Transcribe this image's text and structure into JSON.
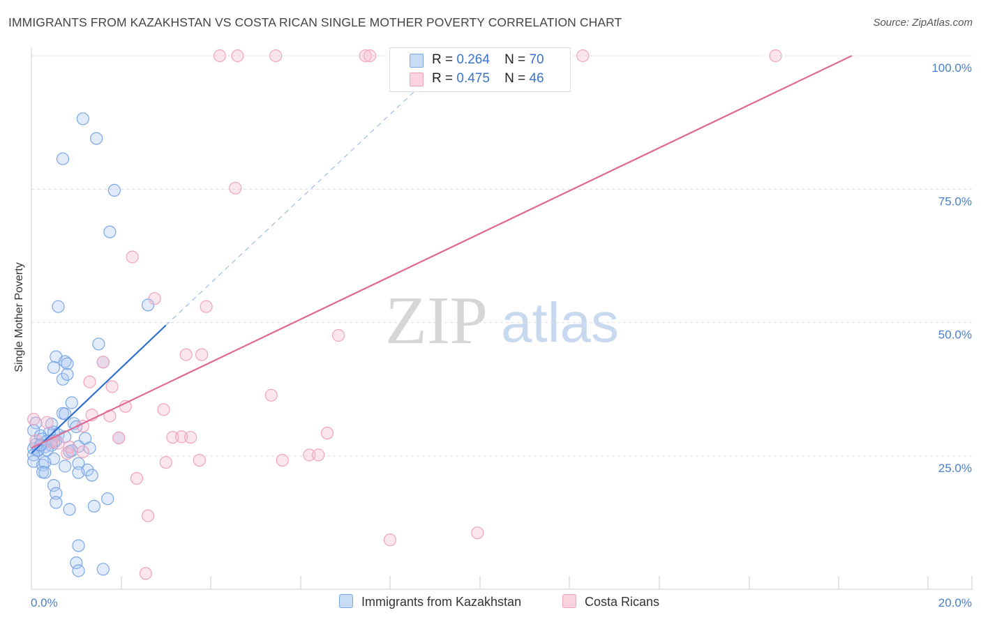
{
  "header": {
    "title": "IMMIGRANTS FROM KAZAKHSTAN VS COSTA RICAN SINGLE MOTHER POVERTY CORRELATION CHART",
    "source": "Source: ZipAtlas.com"
  },
  "watermark": {
    "part1": "ZIP",
    "part2": "atlas"
  },
  "legend": {
    "rows": [
      {
        "r_label": "R =",
        "r_value": "0.264",
        "n_label": "N =",
        "n_value": "70",
        "color": "#a9c7f0"
      },
      {
        "r_label": "R =",
        "r_value": "0.475",
        "n_label": "N =",
        "n_value": "46",
        "color": "#f6b8cc"
      }
    ]
  },
  "bottom_legend": {
    "items": [
      {
        "label": "Immigrants from Kazakhstan",
        "color": "#a9c7f0"
      },
      {
        "label": "Costa Ricans",
        "color": "#f6b8cc"
      }
    ]
  },
  "chart_data": {
    "type": "scatter",
    "title": "IMMIGRANTS FROM KAZAKHSTAN VS COSTA RICAN SINGLE MOTHER POVERTY CORRELATION CHART",
    "xlabel": "",
    "ylabel": "Single Mother Poverty",
    "xlim": [
      0,
      20
    ],
    "ylim": [
      0,
      100
    ],
    "x_tick_labels": [
      "0.0%",
      "20.0%"
    ],
    "y_ticks": [
      25,
      50,
      75,
      100
    ],
    "y_tick_labels": [
      "25.0%",
      "50.0%",
      "75.0%",
      "100.0%"
    ],
    "grid": "horizontal dashed",
    "series": [
      {
        "name": "Immigrants from Kazakhstan",
        "color": "#7aa7e6",
        "line_color": "#2f6fd0",
        "trend": {
          "x0": 0.0,
          "y0": 25.5,
          "x1": 3.0,
          "y1": 49.5,
          "dash_to_x": 9.2,
          "dash_to_y": 98.5
        },
        "points": [
          [
            1.15,
            88.2
          ],
          [
            1.45,
            84.5
          ],
          [
            0.7,
            80.7
          ],
          [
            1.85,
            74.8
          ],
          [
            1.75,
            67.0
          ],
          [
            0.6,
            53.0
          ],
          [
            2.6,
            53.3
          ],
          [
            1.5,
            46.0
          ],
          [
            0.55,
            43.6
          ],
          [
            0.5,
            41.6
          ],
          [
            0.75,
            42.7
          ],
          [
            0.8,
            42.3
          ],
          [
            0.7,
            39.4
          ],
          [
            0.8,
            40.3
          ],
          [
            1.6,
            42.6
          ],
          [
            0.9,
            35.0
          ],
          [
            0.7,
            33.0
          ],
          [
            0.75,
            32.9
          ],
          [
            0.1,
            31.2
          ],
          [
            0.45,
            31.0
          ],
          [
            0.95,
            31.1
          ],
          [
            1.0,
            30.5
          ],
          [
            0.4,
            29.3
          ],
          [
            0.5,
            29.5
          ],
          [
            0.6,
            29.0
          ],
          [
            0.05,
            29.8
          ],
          [
            0.2,
            28.8
          ],
          [
            0.25,
            28.2
          ],
          [
            0.35,
            27.8
          ],
          [
            0.45,
            27.7
          ],
          [
            0.5,
            27.5
          ],
          [
            0.55,
            27.9
          ],
          [
            0.1,
            27.2
          ],
          [
            0.2,
            26.9
          ],
          [
            0.3,
            26.7
          ],
          [
            0.45,
            27.0
          ],
          [
            0.15,
            26.2
          ],
          [
            0.05,
            26.4
          ],
          [
            0.15,
            26.0
          ],
          [
            0.35,
            26.1
          ],
          [
            0.75,
            28.6
          ],
          [
            0.85,
            25.8
          ],
          [
            1.05,
            26.8
          ],
          [
            1.2,
            28.3
          ],
          [
            1.3,
            26.5
          ],
          [
            1.95,
            28.4
          ],
          [
            0.9,
            26.0
          ],
          [
            0.05,
            25.2
          ],
          [
            0.05,
            24.0
          ],
          [
            0.25,
            23.3
          ],
          [
            0.5,
            24.5
          ],
          [
            0.3,
            23.8
          ],
          [
            0.75,
            23.1
          ],
          [
            1.05,
            23.6
          ],
          [
            1.25,
            22.4
          ],
          [
            0.25,
            22.0
          ],
          [
            0.3,
            21.9
          ],
          [
            1.05,
            21.9
          ],
          [
            1.35,
            21.4
          ],
          [
            0.5,
            19.5
          ],
          [
            0.55,
            18.0
          ],
          [
            0.55,
            16.3
          ],
          [
            1.7,
            17.0
          ],
          [
            1.4,
            15.6
          ],
          [
            0.85,
            15.0
          ],
          [
            1.05,
            8.2
          ],
          [
            1.0,
            5.0
          ],
          [
            1.05,
            3.5
          ],
          [
            1.6,
            3.8
          ],
          [
            0.2,
            27.1
          ]
        ]
      },
      {
        "name": "Costa Ricans",
        "color": "#f0a3bd",
        "line_color": "#e06892",
        "trend": {
          "x0": 0.0,
          "y0": 26.5,
          "x1": 18.3,
          "y1": 100.0
        },
        "points": [
          [
            4.2,
            100.0
          ],
          [
            4.6,
            100.0
          ],
          [
            5.45,
            100.0
          ],
          [
            7.45,
            100.0
          ],
          [
            7.55,
            100.0
          ],
          [
            12.3,
            100.0
          ],
          [
            16.6,
            100.0
          ],
          [
            4.55,
            75.2
          ],
          [
            2.25,
            62.3
          ],
          [
            2.75,
            54.5
          ],
          [
            3.9,
            53.0
          ],
          [
            6.85,
            47.6
          ],
          [
            1.6,
            42.6
          ],
          [
            3.45,
            44.0
          ],
          [
            3.8,
            44.0
          ],
          [
            1.3,
            38.9
          ],
          [
            1.8,
            38.0
          ],
          [
            5.35,
            36.4
          ],
          [
            2.1,
            34.3
          ],
          [
            2.95,
            33.7
          ],
          [
            1.35,
            32.7
          ],
          [
            1.75,
            32.5
          ],
          [
            0.05,
            31.9
          ],
          [
            0.35,
            31.3
          ],
          [
            1.15,
            30.6
          ],
          [
            6.6,
            29.3
          ],
          [
            3.15,
            28.5
          ],
          [
            3.35,
            28.6
          ],
          [
            3.55,
            28.5
          ],
          [
            1.95,
            28.4
          ],
          [
            0.1,
            27.9
          ],
          [
            0.6,
            27.4
          ],
          [
            0.85,
            26.7
          ],
          [
            1.15,
            25.8
          ],
          [
            0.8,
            25.5
          ],
          [
            6.2,
            25.2
          ],
          [
            6.4,
            25.2
          ],
          [
            5.6,
            24.2
          ],
          [
            3.75,
            24.2
          ],
          [
            3.0,
            23.8
          ],
          [
            2.35,
            20.8
          ],
          [
            2.6,
            13.8
          ],
          [
            8.0,
            9.3
          ],
          [
            9.95,
            10.6
          ],
          [
            2.55,
            3.0
          ],
          [
            0.45,
            27.6
          ]
        ]
      }
    ]
  }
}
